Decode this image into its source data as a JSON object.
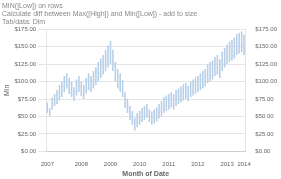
{
  "chart_data": {
    "type": "range_bar",
    "title": [
      "MIN([Low]) on rows",
      "Calculate diff between Max([High]) and Min([Low]) - add to size",
      "Tab/data: Dim"
    ],
    "xlabel": "Month of Date",
    "ylabel": "Min",
    "color": "#b8cfe8",
    "grid": true,
    "categories": [
      "2007",
      null,
      null,
      null,
      null,
      null,
      null,
      null,
      null,
      null,
      null,
      null,
      null,
      null,
      "2008",
      null,
      null,
      null,
      null,
      null,
      null,
      null,
      null,
      null,
      null,
      null,
      "2009",
      null,
      null,
      null,
      null,
      null,
      null,
      null,
      null,
      null,
      null,
      null,
      "2010",
      null,
      null,
      null,
      null,
      null,
      null,
      null,
      null,
      null,
      null,
      null,
      "2011",
      null,
      null,
      null,
      null,
      null,
      null,
      null,
      null,
      null,
      null,
      null,
      "2012",
      null,
      null,
      null,
      null,
      null,
      null,
      null,
      null,
      null,
      null,
      null,
      "2013",
      null,
      null,
      null,
      null,
      null,
      null,
      "2014"
    ],
    "values": [
      [
        55,
        70
      ],
      [
        50,
        62
      ],
      [
        60,
        77
      ],
      [
        65,
        82
      ],
      [
        68,
        88
      ],
      [
        73,
        95
      ],
      [
        78,
        100
      ],
      [
        85,
        108
      ],
      [
        90,
        112
      ],
      [
        82,
        105
      ],
      [
        78,
        100
      ],
      [
        72,
        92
      ],
      [
        80,
        103
      ],
      [
        85,
        108
      ],
      [
        79,
        100
      ],
      [
        75,
        95
      ],
      [
        83,
        105
      ],
      [
        88,
        112
      ],
      [
        85,
        108
      ],
      [
        90,
        115
      ],
      [
        95,
        120
      ],
      [
        100,
        128
      ],
      [
        105,
        133
      ],
      [
        110,
        138
      ],
      [
        115,
        145
      ],
      [
        120,
        152
      ],
      [
        125,
        158
      ],
      [
        115,
        145
      ],
      [
        100,
        128
      ],
      [
        90,
        118
      ],
      [
        85,
        112
      ],
      [
        78,
        102
      ],
      [
        62,
        85
      ],
      [
        55,
        75
      ],
      [
        45,
        65
      ],
      [
        38,
        58
      ],
      [
        30,
        48
      ],
      [
        35,
        55
      ],
      [
        38,
        58
      ],
      [
        42,
        62
      ],
      [
        45,
        65
      ],
      [
        48,
        68
      ],
      [
        42,
        60
      ],
      [
        38,
        57
      ],
      [
        40,
        60
      ],
      [
        43,
        63
      ],
      [
        47,
        68
      ],
      [
        50,
        72
      ],
      [
        55,
        78
      ],
      [
        58,
        80
      ],
      [
        60,
        82
      ],
      [
        63,
        85
      ],
      [
        60,
        82
      ],
      [
        65,
        88
      ],
      [
        68,
        90
      ],
      [
        70,
        93
      ],
      [
        73,
        96
      ],
      [
        75,
        98
      ],
      [
        72,
        94
      ],
      [
        78,
        100
      ],
      [
        80,
        103
      ],
      [
        83,
        106
      ],
      [
        85,
        108
      ],
      [
        88,
        112
      ],
      [
        90,
        115
      ],
      [
        93,
        118
      ],
      [
        98,
        124
      ],
      [
        100,
        128
      ],
      [
        103,
        130
      ],
      [
        108,
        135
      ],
      [
        110,
        138
      ],
      [
        105,
        132
      ],
      [
        115,
        143
      ],
      [
        120,
        148
      ],
      [
        125,
        153
      ],
      [
        128,
        157
      ],
      [
        130,
        160
      ],
      [
        133,
        163
      ],
      [
        138,
        168
      ],
      [
        140,
        170
      ],
      [
        142,
        172
      ],
      [
        138,
        167
      ]
    ],
    "ylim": [
      0,
      175
    ],
    "yticks": [
      {
        "value": 0,
        "label": "$0.00"
      },
      {
        "value": 25,
        "label": "$25.00"
      },
      {
        "value": 50,
        "label": "$50.00"
      },
      {
        "value": 75,
        "label": "$75.00"
      },
      {
        "value": 100,
        "label": "$100.00"
      },
      {
        "value": 125,
        "label": "$125.00"
      },
      {
        "value": 150,
        "label": "$150.00"
      },
      {
        "value": 175,
        "label": "$175.00"
      }
    ],
    "y2lim": [
      0,
      175
    ],
    "y2ticks": [
      {
        "value": 0,
        "label": "$0.00"
      },
      {
        "value": 25,
        "label": "$25.00"
      },
      {
        "value": 50,
        "label": "$50.00"
      },
      {
        "value": 75,
        "label": "$75.00"
      },
      {
        "value": 100,
        "label": "$100.00"
      },
      {
        "value": 125,
        "label": "$125.00"
      },
      {
        "value": 150,
        "label": "$150.00"
      },
      {
        "value": 175,
        "label": "$175.00"
      }
    ]
  }
}
